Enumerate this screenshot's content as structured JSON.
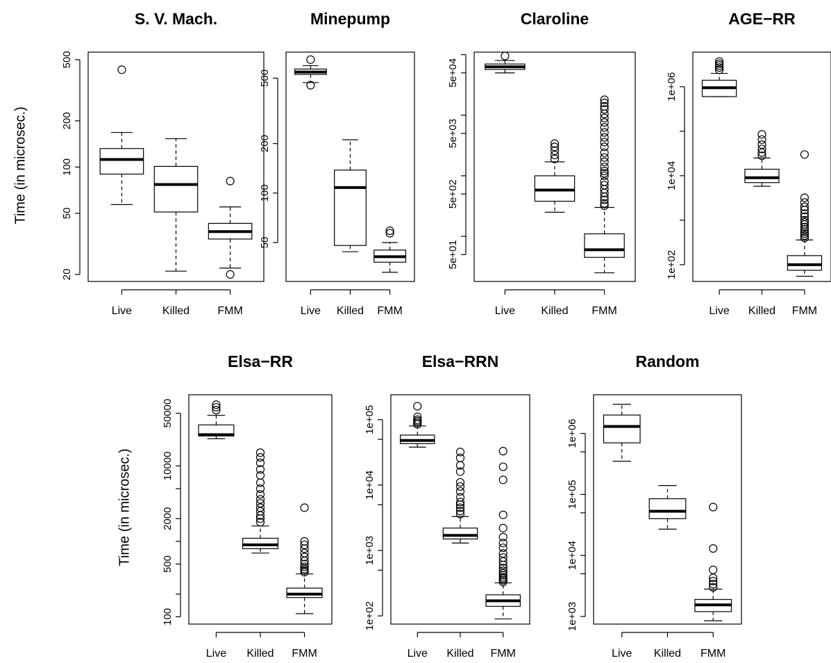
{
  "y_axis_label": "Time (in microsec.)",
  "chart_data": [
    {
      "type": "boxplot",
      "title": "S. V. Mach.",
      "log_y": true,
      "ylim": [
        18,
        560
      ],
      "categories": [
        "Live",
        "Killed",
        "FMM"
      ],
      "yticks": [
        20,
        50,
        100,
        200,
        500
      ],
      "ytick_labels": [
        "20",
        "50",
        "100",
        "200",
        "500"
      ],
      "boxes": [
        {
          "label": "Live",
          "whisker_low": 57,
          "q1": 90,
          "median": 112,
          "q3": 132,
          "whisker_high": 168,
          "outliers": [
            430
          ]
        },
        {
          "label": "Killed",
          "whisker_low": 21,
          "q1": 51,
          "median": 77,
          "q3": 101,
          "whisker_high": 153,
          "outliers": []
        },
        {
          "label": "FMM",
          "whisker_low": 22,
          "q1": 34,
          "median": 38,
          "q3": 43,
          "whisker_high": 55,
          "outliers": [
            20,
            81
          ]
        }
      ]
    },
    {
      "type": "boxplot",
      "title": "Minepump",
      "log_y": true,
      "ylim": [
        29,
        720
      ],
      "categories": [
        "Live",
        "Killed",
        "FMM"
      ],
      "yticks": [
        50,
        100,
        200,
        500
      ],
      "ytick_labels": [
        "50",
        "100",
        "200",
        "500"
      ],
      "boxes": [
        {
          "label": "Live",
          "whisker_low": 470,
          "q1": 527,
          "median": 545,
          "q3": 568,
          "whisker_high": 596,
          "outliers": [
            453,
            648
          ]
        },
        {
          "label": "Killed",
          "whisker_low": 44,
          "q1": 48,
          "median": 108,
          "q3": 138,
          "whisker_high": 211,
          "outliers": []
        },
        {
          "label": "FMM",
          "whisker_low": 33,
          "q1": 38,
          "median": 41,
          "q3": 45,
          "whisker_high": 50,
          "outliers": [
            57,
            59
          ]
        }
      ]
    },
    {
      "type": "boxplot",
      "title": "Claroline",
      "log_y": true,
      "ylim": [
        18,
        110000
      ],
      "categories": [
        "Live",
        "Killed",
        "FMM"
      ],
      "yticks": [
        50,
        500,
        5000,
        50000
      ],
      "ytick_labels": [
        "5e+01",
        "5e+02",
        "5e+03",
        "5e+04"
      ],
      "minor_ticks": [
        100,
        1000,
        10000,
        100000
      ],
      "boxes": [
        {
          "label": "Live",
          "whisker_low": 50000,
          "q1": 57000,
          "median": 63000,
          "q3": 70000,
          "whisker_high": 80000,
          "outliers": [
            95000
          ]
        },
        {
          "label": "Killed",
          "whisker_low": 250,
          "q1": 380,
          "median": 580,
          "q3": 1000,
          "whisker_high": 1700,
          "outliers": [
            1900,
            2200,
            2600,
            3000,
            3400
          ]
        },
        {
          "label": "FMM",
          "whisker_low": 25,
          "q1": 45,
          "median": 60,
          "q3": 110,
          "whisker_high": 300,
          "outliers": [
            320,
            350,
            400,
            450,
            520,
            600,
            700,
            800,
            1000,
            1100,
            1200,
            1400,
            1700,
            2000,
            2400,
            3000,
            3600,
            4300,
            5200,
            6300,
            7600,
            9000,
            10500,
            12500,
            14000,
            16000,
            18000
          ]
        }
      ]
    },
    {
      "type": "boxplot",
      "title": "AGE−RR",
      "log_y": true,
      "ylim": [
        42,
        6000000
      ],
      "categories": [
        "Live",
        "Killed",
        "FMM"
      ],
      "yticks": [
        100,
        10000,
        1000000
      ],
      "ytick_labels": [
        "1e+02",
        "1e+04",
        "1e+06"
      ],
      "minor_ticks": [
        1000,
        100000
      ],
      "boxes": [
        {
          "label": "Live",
          "whisker_low": 600000,
          "q1": 600000,
          "median": 950000,
          "q3": 1400000,
          "whisker_high": 2000000,
          "outliers": [
            2400000,
            2700000,
            3000000,
            3300000,
            3700000
          ]
        },
        {
          "label": "Killed",
          "whisker_low": 5800,
          "q1": 7000,
          "median": 9000,
          "q3": 14000,
          "whisker_high": 25000,
          "outliers": [
            28000,
            33000,
            40000,
            50000,
            65000,
            85000
          ]
        },
        {
          "label": "FMM",
          "whisker_low": 55,
          "q1": 75,
          "median": 100,
          "q3": 160,
          "whisker_high": 360,
          "outliers": [
            400,
            450,
            500,
            550,
            620,
            700,
            800,
            900,
            1000,
            1200,
            1400,
            1700,
            2000,
            2500,
            3200,
            30000
          ]
        }
      ]
    },
    {
      "type": "boxplot",
      "title": "Elsa−RR",
      "log_y": true,
      "ylim": [
        80,
        88000
      ],
      "categories": [
        "Live",
        "Killed",
        "FMM"
      ],
      "yticks": [
        100,
        500,
        2000,
        10000,
        50000
      ],
      "ytick_labels": [
        "100",
        "500",
        "2000",
        "10000",
        "50000"
      ],
      "minor_ticks": [
        200,
        1000,
        5000
      ],
      "boxes": [
        {
          "label": "Live",
          "whisker_low": 23000,
          "q1": 25000,
          "median": 26000,
          "q3": 35000,
          "whisker_high": 47000,
          "outliers": [
            55000,
            60000,
            65000
          ]
        },
        {
          "label": "Killed",
          "whisker_low": 700,
          "q1": 800,
          "median": 900,
          "q3": 1100,
          "whisker_high": 1600,
          "outliers": [
            1800,
            2000,
            2200,
            2500,
            2800,
            3200,
            3600,
            4200,
            5000,
            6000,
            7500,
            9000,
            11000,
            13000,
            15000
          ]
        },
        {
          "label": "FMM",
          "whisker_low": 110,
          "q1": 180,
          "median": 200,
          "q3": 240,
          "whisker_high": 370,
          "outliers": [
            390,
            410,
            430,
            460,
            500,
            550,
            620,
            700,
            800,
            900,
            1000,
            2800
          ]
        }
      ]
    },
    {
      "type": "boxplot",
      "title": "Elsa−RRN",
      "log_y": true,
      "ylim": [
        75,
        240000
      ],
      "categories": [
        "Live",
        "Killed",
        "FMM"
      ],
      "yticks": [
        100,
        1000,
        10000,
        100000
      ],
      "ytick_labels": [
        "1e+02",
        "1e+03",
        "1e+04",
        "1e+05"
      ],
      "minor_ticks": [
        500,
        5000,
        50000
      ],
      "boxes": [
        {
          "label": "Live",
          "whisker_low": 38000,
          "q1": 43000,
          "median": 48000,
          "q3": 58000,
          "whisker_high": 80000,
          "outliers": [
            85000,
            90000,
            95000,
            100000,
            110000,
            160000
          ]
        },
        {
          "label": "Killed",
          "whisker_low": 1300,
          "q1": 1500,
          "median": 1700,
          "q3": 2200,
          "whisker_high": 3300,
          "outliers": [
            3600,
            4000,
            4500,
            5000,
            5500,
            6500,
            8000,
            9500,
            11000,
            16000,
            20000,
            26000,
            32000
          ]
        },
        {
          "label": "FMM",
          "whisker_low": 90,
          "q1": 140,
          "median": 170,
          "q3": 210,
          "whisker_high": 320,
          "outliers": [
            330,
            350,
            370,
            390,
            420,
            450,
            490,
            540,
            600,
            680,
            780,
            900,
            1100,
            1300,
            1600,
            2200,
            3500,
            12000,
            19000,
            33000
          ]
        }
      ]
    },
    {
      "type": "boxplot",
      "title": "Random",
      "log_y": true,
      "ylim": [
        750,
        4300000
      ],
      "categories": [
        "Live",
        "Killed",
        "FMM"
      ],
      "yticks": [
        1000,
        10000,
        100000,
        1000000
      ],
      "ytick_labels": [
        "1e+03",
        "1e+04",
        "1e+05",
        "1e+06"
      ],
      "minor_ticks": [
        5000,
        50000,
        500000
      ],
      "boxes": [
        {
          "label": "Live",
          "whisker_low": 350000,
          "q1": 700000,
          "median": 1300000,
          "q3": 2000000,
          "whisker_high": 3000000,
          "outliers": []
        },
        {
          "label": "Killed",
          "whisker_low": 27000,
          "q1": 40000,
          "median": 53000,
          "q3": 85000,
          "whisker_high": 140000,
          "outliers": []
        },
        {
          "label": "FMM",
          "whisker_low": 850,
          "q1": 1200,
          "median": 1550,
          "q3": 1900,
          "whisker_high": 2800,
          "outliers": [
            3000,
            3400,
            3800,
            4300,
            5800,
            13000,
            62000
          ]
        }
      ]
    }
  ]
}
